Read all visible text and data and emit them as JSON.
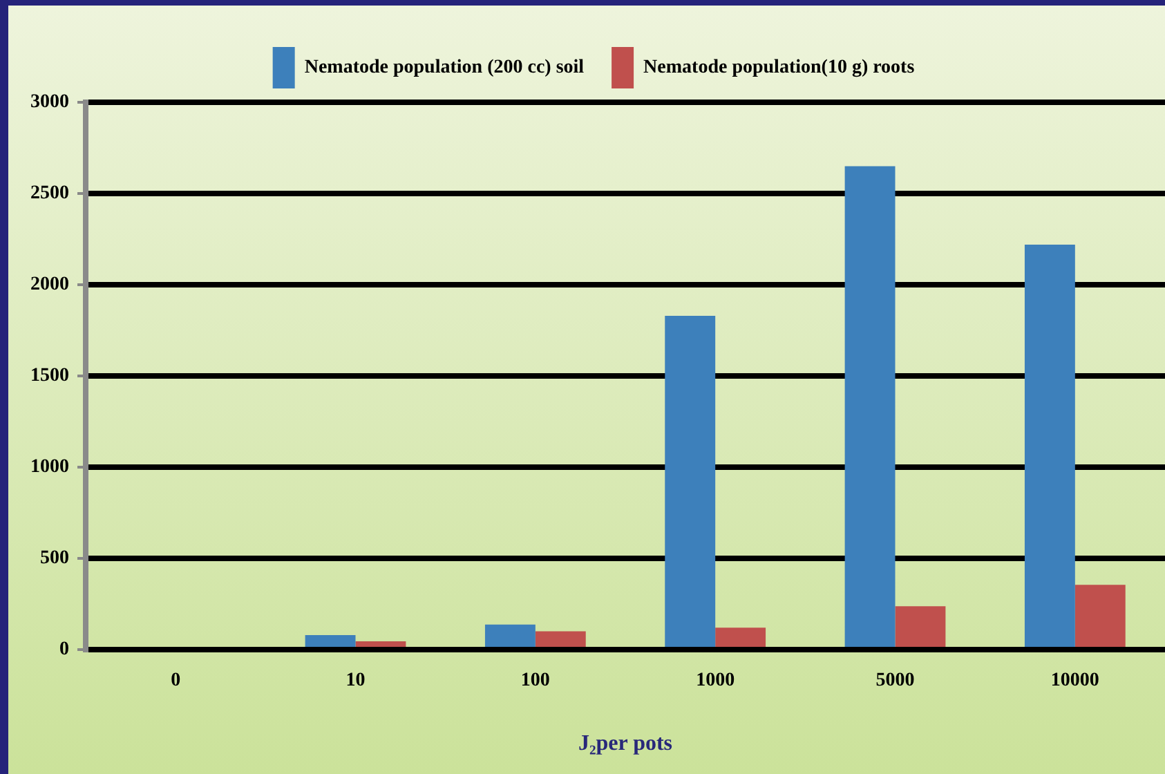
{
  "chart_data": {
    "type": "bar",
    "xlabel": "J₂per pots",
    "categories": [
      "0",
      "10",
      "100",
      "1000",
      "5000",
      "10000"
    ],
    "series": [
      {
        "name": "Nematode population (200 cc) soil",
        "color": "#3d80bb",
        "values": [
          0,
          80,
          137,
          1830,
          2650,
          2220
        ]
      },
      {
        "name": "Nematode population(10 g) roots",
        "color": "#c0504d",
        "values": [
          0,
          45,
          100,
          120,
          238,
          355
        ]
      }
    ],
    "ylim": [
      0,
      3000
    ],
    "yticks": [
      0,
      500,
      1000,
      1500,
      2000,
      2500,
      3000
    ],
    "grid": "y",
    "legend": "top"
  }
}
